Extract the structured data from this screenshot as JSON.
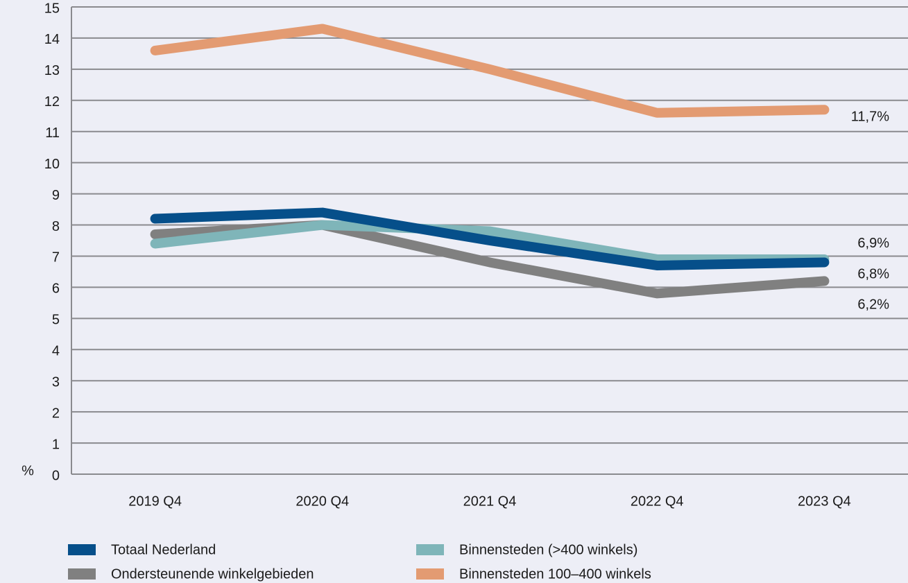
{
  "chart_data": {
    "type": "line",
    "ylabel": "%",
    "categories": [
      "2019 Q4",
      "2020 Q4",
      "2021 Q4",
      "2022 Q4",
      "2023 Q4"
    ],
    "ylim": [
      0,
      15
    ],
    "yticks": [
      0,
      1,
      2,
      3,
      4,
      5,
      6,
      7,
      8,
      9,
      10,
      11,
      12,
      13,
      14,
      15
    ],
    "grid": true,
    "legend": "bottom",
    "series": [
      {
        "name": "Totaal Nederland",
        "color": "#064f8a",
        "values": [
          8.2,
          8.4,
          7.5,
          6.7,
          6.8
        ],
        "value_labels": [
          null,
          null,
          null,
          null,
          "6,8%"
        ]
      },
      {
        "name": "Ondersteunende winkelgebieden",
        "color": "#808080",
        "values": [
          7.7,
          8.0,
          6.8,
          5.8,
          6.2
        ],
        "value_labels": [
          null,
          null,
          null,
          null,
          "6,2%"
        ]
      },
      {
        "name": "Binnensteden (>400 winkels)",
        "color": "#7fb5b9",
        "values": [
          7.4,
          8.0,
          7.8,
          6.9,
          6.9
        ],
        "value_labels": [
          null,
          null,
          null,
          null,
          "6,9%"
        ]
      },
      {
        "name": "Binnensteden 100–400 winkels",
        "color": "#e39b72",
        "values": [
          13.6,
          14.3,
          13.0,
          11.6,
          11.7
        ],
        "value_labels": [
          null,
          null,
          null,
          null,
          "11,7%"
        ]
      }
    ]
  }
}
